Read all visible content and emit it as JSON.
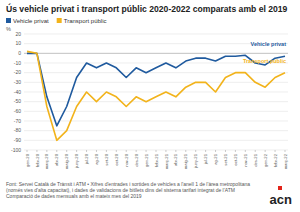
{
  "chart_data": {
    "type": "line",
    "title": "Ús vehicle privat i transport públic 2020-2022 comparats amb el 2019",
    "y_label": "%",
    "categories": [
      "gen-20",
      "febr-20",
      "març-20",
      "abr-20",
      "maig-20",
      "juny-20",
      "jul-20",
      "ag-20",
      "set-20",
      "oct-20",
      "nov-20",
      "des-20",
      "gen-21",
      "febr-21",
      "març-21",
      "abr-21",
      "maig-21",
      "juny-21",
      "jul-21",
      "ag-21",
      "set-21",
      "oct-21",
      "nov-21",
      "des-21",
      "gen-22",
      "febr-22",
      "març-22"
    ],
    "series": [
      {
        "name": "Vehicle privat",
        "color": "#1f5a9e",
        "values": [
          0,
          0,
          -45,
          -75,
          -55,
          -25,
          -10,
          -15,
          -10,
          -15,
          -25,
          -15,
          -20,
          -15,
          -10,
          -15,
          -8,
          -5,
          -5,
          -8,
          -3,
          -3,
          -2,
          -10,
          -12,
          -5,
          -3
        ]
      },
      {
        "name": "Transport públic",
        "color": "#f2b31b",
        "values": [
          2,
          0,
          -55,
          -90,
          -80,
          -55,
          -40,
          -50,
          -40,
          -45,
          -55,
          -45,
          -50,
          -45,
          -40,
          -45,
          -35,
          -30,
          -30,
          -40,
          -25,
          -20,
          -20,
          -30,
          -35,
          -25,
          -20
        ]
      }
    ],
    "ylim": [
      -100,
      20
    ],
    "yticks": [
      -100,
      -90,
      -80,
      -70,
      -60,
      -50,
      -40,
      -30,
      -20,
      -10,
      0,
      10,
      20
    ],
    "grid": true,
    "legend": "top-left",
    "source": "Font: Servei Català de Trànsit i ATM • Xifres d'entrades i sortides de vehicles a l'anell 1 de l'àrea metropolitana (només vies d'alta capacitat), i dades de validacions de bitllets dins del sistema tarifari integrat de l'ATM",
    "note": "Comparació de dades mensuals amb el mateix mes del 2019",
    "logo": "acn"
  }
}
